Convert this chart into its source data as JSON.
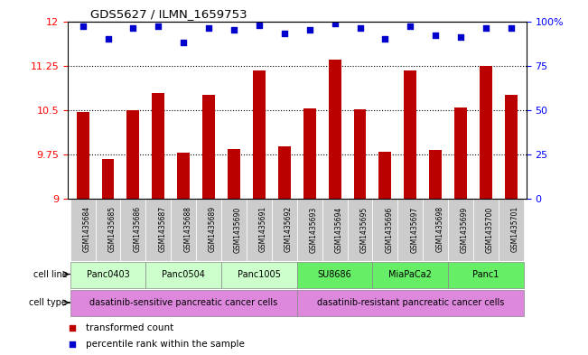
{
  "title": "GDS5627 / ILMN_1659753",
  "samples": [
    "GSM1435684",
    "GSM1435685",
    "GSM1435686",
    "GSM1435687",
    "GSM1435688",
    "GSM1435689",
    "GSM1435690",
    "GSM1435691",
    "GSM1435692",
    "GSM1435693",
    "GSM1435694",
    "GSM1435695",
    "GSM1435696",
    "GSM1435697",
    "GSM1435698",
    "GSM1435699",
    "GSM1435700",
    "GSM1435701"
  ],
  "bar_values": [
    10.47,
    9.68,
    10.5,
    10.78,
    9.78,
    10.75,
    9.84,
    11.17,
    9.88,
    10.53,
    11.35,
    10.52,
    9.8,
    11.17,
    9.83,
    10.55,
    11.25,
    10.75
  ],
  "percentile_values": [
    97,
    90,
    96,
    97,
    88,
    96,
    95,
    98,
    93,
    95,
    99,
    96,
    90,
    97,
    92,
    91,
    96,
    96
  ],
  "ylim_left": [
    9,
    12
  ],
  "ylim_right": [
    0,
    100
  ],
  "yticks_left": [
    9,
    9.75,
    10.5,
    11.25,
    12
  ],
  "yticks_right": [
    0,
    25,
    50,
    75,
    100
  ],
  "ytick_labels_left": [
    "9",
    "9.75",
    "10.5",
    "11.25",
    "12"
  ],
  "ytick_labels_right": [
    "0",
    "25",
    "50",
    "75",
    "100%"
  ],
  "bar_color": "#bb0000",
  "dot_color": "#0000cc",
  "grid_color": "#000000",
  "cell_lines": [
    {
      "name": "Panc0403",
      "start": 0,
      "end": 2,
      "color": "#ccffcc"
    },
    {
      "name": "Panc0504",
      "start": 3,
      "end": 5,
      "color": "#ccffcc"
    },
    {
      "name": "Panc1005",
      "start": 6,
      "end": 8,
      "color": "#ccffcc"
    },
    {
      "name": "SU8686",
      "start": 9,
      "end": 11,
      "color": "#66ee66"
    },
    {
      "name": "MiaPaCa2",
      "start": 12,
      "end": 14,
      "color": "#66ee66"
    },
    {
      "name": "Panc1",
      "start": 15,
      "end": 17,
      "color": "#66ee66"
    }
  ],
  "cell_types": [
    {
      "name": "dasatinib-sensitive pancreatic cancer cells",
      "start": 0,
      "end": 8,
      "color": "#dd88dd"
    },
    {
      "name": "dasatinib-resistant pancreatic cancer cells",
      "start": 9,
      "end": 17,
      "color": "#dd88dd"
    }
  ],
  "sample_box_color": "#cccccc",
  "legend_items": [
    {
      "label": "transformed count",
      "color": "#bb0000"
    },
    {
      "label": "percentile rank within the sample",
      "color": "#0000cc"
    }
  ]
}
